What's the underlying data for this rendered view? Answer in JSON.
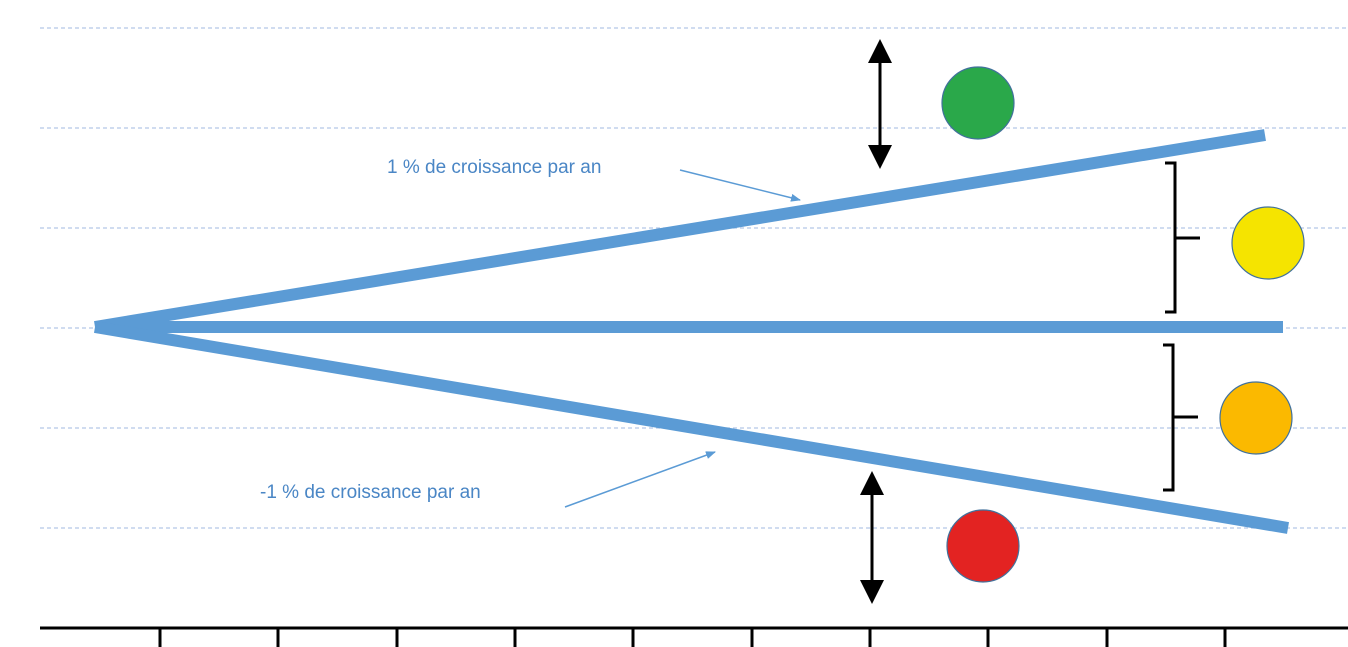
{
  "annotations": [
    {
      "label": "1 % de croissance par an"
    },
    {
      "label": "-1 % de croissance par an"
    }
  ]
}
